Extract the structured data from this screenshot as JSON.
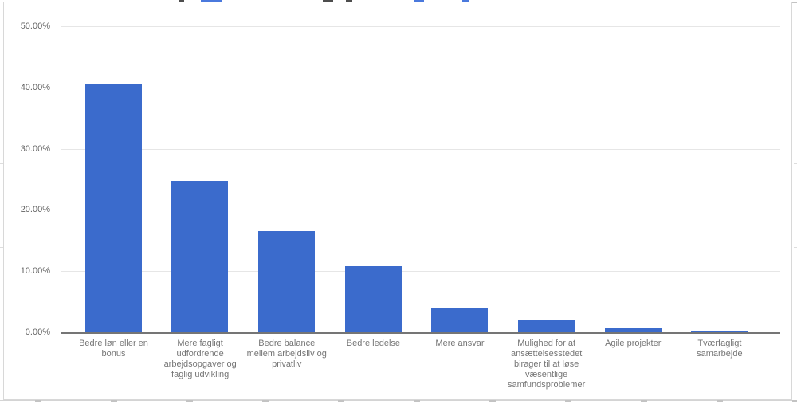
{
  "chart_data": {
    "type": "bar",
    "categories": [
      "Bedre løn eller en bonus",
      "Mere fagligt udfordrende arbejdsopgaver og faglig udvikling",
      "Bedre balance mellem arbejdsliv og privatliv",
      "Bedre ledelse",
      "Mere ansvar",
      "Mulighed for at ansættelsesstedet birager til at løse væsentlige samfundsproblemer",
      "Agile projekter",
      "Tværfagligt samarbejde"
    ],
    "values": [
      40.6,
      24.8,
      16.5,
      10.8,
      3.9,
      2.0,
      0.6,
      0.3
    ],
    "title": "",
    "xlabel": "",
    "ylabel": "",
    "ylim": [
      0,
      50
    ],
    "y_tick_values": [
      0,
      10,
      20,
      30,
      40,
      50
    ],
    "y_tick_labels": [
      "0.00%",
      "10.00%",
      "20.00%",
      "30.00%",
      "40.00%",
      "50.00%"
    ],
    "grid": true,
    "legend": "none"
  },
  "colors": {
    "bar": "#3b6bcc",
    "gridline": "#e6e6e6",
    "axis_line": "#757575",
    "y_label": "#616161",
    "x_label": "#757575",
    "chart_border": "#d8d8d8",
    "fragment_dark": "#4d4d4d",
    "fragment_blue": "#4a79dd"
  }
}
